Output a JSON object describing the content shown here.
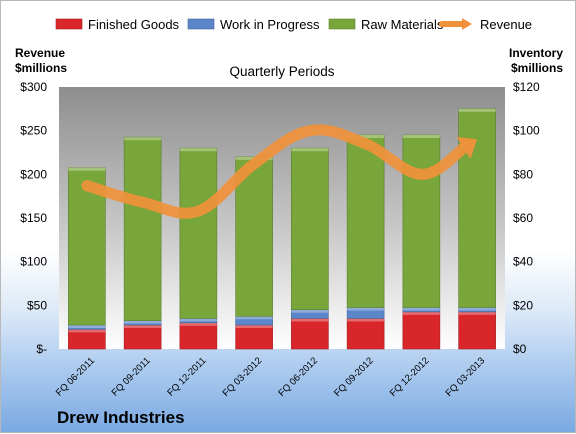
{
  "chart_data": {
    "type": "bar",
    "stacked": true,
    "title": "Quarterly Periods",
    "company": "Drew Industries",
    "left_axis_title": [
      "Revenue",
      "$millions"
    ],
    "right_axis_title": [
      "Inventory",
      "$millions"
    ],
    "left_ticks": [
      "$-",
      "$50",
      "$100",
      "$150",
      "$200",
      "$250",
      "$300"
    ],
    "right_ticks": [
      "$0",
      "$20",
      "$40",
      "$60",
      "$80",
      "$100",
      "$120"
    ],
    "ylim_left": [
      0,
      300
    ],
    "ylim_right": [
      0,
      120
    ],
    "categories": [
      "FQ 06-2011",
      "FQ 09-2011",
      "FQ 12-2011",
      "FQ 03-2012",
      "FQ 06-2012",
      "FQ 09-2012",
      "FQ 12-2012",
      "FQ 03-2013"
    ],
    "series": [
      {
        "name": "Finished Goods",
        "axis": "right",
        "color": "#d9262b",
        "values": [
          9,
          11,
          12,
          11,
          14,
          14,
          17,
          17
        ]
      },
      {
        "name": "Work in Progress",
        "axis": "right",
        "color": "#5b86c9",
        "values": [
          2,
          2,
          2,
          4,
          4,
          5,
          2,
          2
        ]
      },
      {
        "name": "Raw Materials",
        "axis": "right",
        "color": "#79a63a",
        "values": [
          72,
          84,
          78,
          73,
          74,
          79,
          79,
          91
        ]
      },
      {
        "name": "Revenue",
        "axis": "left",
        "type": "line",
        "color": "#f0913b",
        "values": [
          187,
          168,
          158,
          212,
          250,
          235,
          200,
          240
        ]
      }
    ],
    "legend_position": "top",
    "grid": false
  }
}
